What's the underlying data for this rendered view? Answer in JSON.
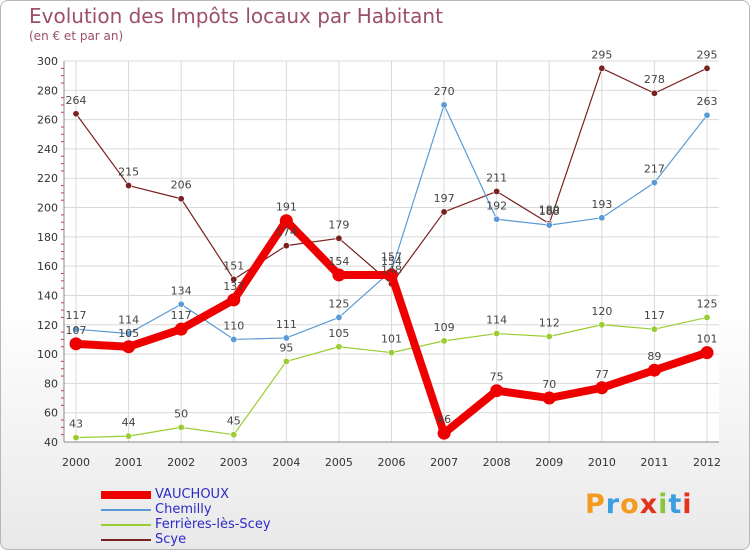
{
  "title": "Evolution des Impôts locaux par Habitant",
  "subtitle": "(en € et par an)",
  "brand": "Proxiti",
  "brand_colors": [
    "#f39a1f",
    "#3a9ee0",
    "#f39a1f",
    "#e2331c",
    "#8bc53f",
    "#3a9ee0",
    "#e2331c"
  ],
  "chart_data": {
    "type": "line",
    "title": "Evolution des Impôts locaux par Habitant",
    "subtitle": "(en € et par an)",
    "x": [
      2000,
      2001,
      2002,
      2003,
      2004,
      2005,
      2006,
      2007,
      2008,
      2009,
      2010,
      2011,
      2012
    ],
    "x_tick_labels": [
      "2000",
      "2001",
      "2002",
      "2003",
      "2004",
      "2005",
      "2006",
      "2007",
      "2008",
      "2009",
      "2010",
      "2011",
      "2012"
    ],
    "ylim": [
      40,
      300
    ],
    "y_ticks": [
      40,
      60,
      80,
      100,
      120,
      140,
      160,
      180,
      200,
      220,
      240,
      260,
      280,
      300
    ],
    "y_tick_labels": [
      "40",
      "60",
      "80",
      "100",
      "120",
      "140",
      "160",
      "180",
      "200",
      "220",
      "240",
      "260",
      "280",
      "300"
    ],
    "grid": true,
    "legend_position": "bottom-left",
    "series": [
      {
        "name": "VAUCHOUX",
        "color": "#ee0000",
        "emphasis": true,
        "values": [
          107,
          105,
          117,
          137,
          191,
          154,
          154,
          46,
          75,
          70,
          77,
          89,
          101
        ],
        "labels": [
          "107",
          "105",
          "117",
          "137",
          "191",
          "154",
          "154",
          "46",
          "75",
          "70",
          "77",
          "89",
          "101"
        ]
      },
      {
        "name": "Chemilly",
        "color": "#5b9bd5",
        "emphasis": false,
        "values": [
          117,
          114,
          134,
          110,
          111,
          125,
          157,
          270,
          192,
          188,
          193,
          217,
          263
        ],
        "labels": [
          "117",
          "114",
          "134",
          "110",
          "111",
          "125",
          "157",
          "270",
          "192",
          "188",
          "193",
          "217",
          "263"
        ]
      },
      {
        "name": "Ferrières-lès-Scey",
        "color": "#9acd32",
        "emphasis": false,
        "values": [
          43,
          44,
          50,
          45,
          95,
          105,
          101,
          109,
          114,
          112,
          120,
          117,
          125
        ],
        "labels": [
          "43",
          "44",
          "50",
          "45",
          "95",
          "105",
          "101",
          "109",
          "114",
          "112",
          "120",
          "117",
          "125"
        ]
      },
      {
        "name": "Scye",
        "color": "#7a2020",
        "emphasis": false,
        "values": [
          264,
          215,
          206,
          151,
          174,
          179,
          148,
          197,
          211,
          189,
          295,
          278,
          295
        ],
        "labels": [
          "264",
          "215",
          "206",
          "151",
          "174",
          "179",
          "148",
          "197",
          "211",
          "189",
          "295",
          "278",
          "295"
        ]
      }
    ]
  }
}
